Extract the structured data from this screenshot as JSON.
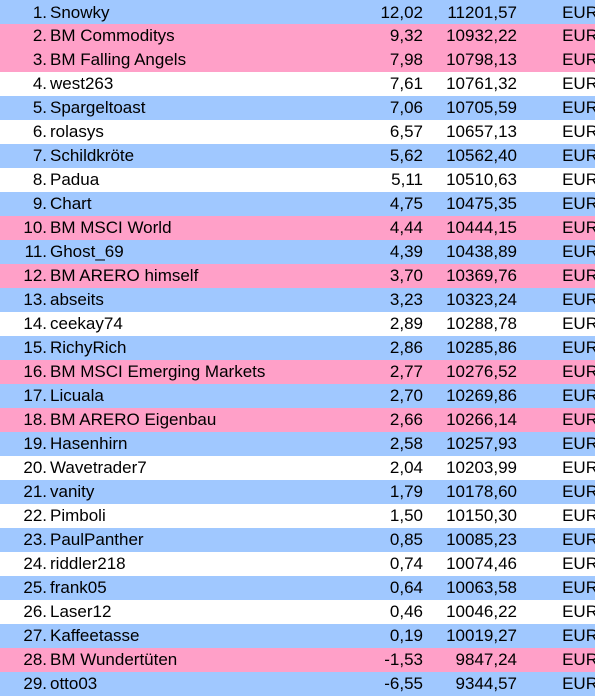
{
  "colors": {
    "white": "#ffffff",
    "blue": "#a0c8ff",
    "pink": "#ffa0c8"
  },
  "rows": [
    {
      "rank": "1.",
      "name": "Snowky",
      "pct": "12,02",
      "value": "11201,57",
      "currency": "EUR",
      "color": "blue"
    },
    {
      "rank": "2.",
      "name": "BM Commoditys",
      "pct": "9,32",
      "value": "10932,22",
      "currency": "EUR",
      "color": "pink"
    },
    {
      "rank": "3.",
      "name": "BM Falling Angels",
      "pct": "7,98",
      "value": "10798,13",
      "currency": "EUR",
      "color": "pink"
    },
    {
      "rank": "4.",
      "name": "west263",
      "pct": "7,61",
      "value": "10761,32",
      "currency": "EUR",
      "color": "white"
    },
    {
      "rank": "5.",
      "name": "Spargeltoast",
      "pct": "7,06",
      "value": "10705,59",
      "currency": "EUR",
      "color": "blue"
    },
    {
      "rank": "6.",
      "name": "rolasys",
      "pct": "6,57",
      "value": "10657,13",
      "currency": "EUR",
      "color": "white"
    },
    {
      "rank": "7.",
      "name": "Schildkröte",
      "pct": "5,62",
      "value": "10562,40",
      "currency": "EUR",
      "color": "blue"
    },
    {
      "rank": "8.",
      "name": "Padua",
      "pct": "5,11",
      "value": "10510,63",
      "currency": "EUR",
      "color": "white"
    },
    {
      "rank": "9.",
      "name": "Chart",
      "pct": "4,75",
      "value": "10475,35",
      "currency": "EUR",
      "color": "blue"
    },
    {
      "rank": "10.",
      "name": "BM MSCI World",
      "pct": "4,44",
      "value": "10444,15",
      "currency": "EUR",
      "color": "pink"
    },
    {
      "rank": "11.",
      "name": "Ghost_69",
      "pct": "4,39",
      "value": "10438,89",
      "currency": "EUR",
      "color": "blue"
    },
    {
      "rank": "12.",
      "name": "BM ARERO himself",
      "pct": "3,70",
      "value": "10369,76",
      "currency": "EUR",
      "color": "pink"
    },
    {
      "rank": "13.",
      "name": "abseits",
      "pct": "3,23",
      "value": "10323,24",
      "currency": "EUR",
      "color": "blue"
    },
    {
      "rank": "14.",
      "name": "ceekay74",
      "pct": "2,89",
      "value": "10288,78",
      "currency": "EUR",
      "color": "white"
    },
    {
      "rank": "15.",
      "name": "RichyRich",
      "pct": "2,86",
      "value": "10285,86",
      "currency": "EUR",
      "color": "blue"
    },
    {
      "rank": "16.",
      "name": "BM MSCI Emerging Markets",
      "pct": "2,77",
      "value": "10276,52",
      "currency": "EUR",
      "color": "pink"
    },
    {
      "rank": "17.",
      "name": "Licuala",
      "pct": "2,70",
      "value": "10269,86",
      "currency": "EUR",
      "color": "blue"
    },
    {
      "rank": "18.",
      "name": "BM ARERO Eigenbau",
      "pct": "2,66",
      "value": "10266,14",
      "currency": "EUR",
      "color": "pink"
    },
    {
      "rank": "19.",
      "name": "Hasenhirn",
      "pct": "2,58",
      "value": "10257,93",
      "currency": "EUR",
      "color": "blue"
    },
    {
      "rank": "20.",
      "name": "Wavetrader7",
      "pct": "2,04",
      "value": "10203,99",
      "currency": "EUR",
      "color": "white"
    },
    {
      "rank": "21.",
      "name": "vanity",
      "pct": "1,79",
      "value": "10178,60",
      "currency": "EUR",
      "color": "blue"
    },
    {
      "rank": "22.",
      "name": "Pimboli",
      "pct": "1,50",
      "value": "10150,30",
      "currency": "EUR",
      "color": "white"
    },
    {
      "rank": "23.",
      "name": "PaulPanther",
      "pct": "0,85",
      "value": "10085,23",
      "currency": "EUR",
      "color": "blue"
    },
    {
      "rank": "24.",
      "name": "riddler218",
      "pct": "0,74",
      "value": "10074,46",
      "currency": "EUR",
      "color": "white"
    },
    {
      "rank": "25.",
      "name": "frank05",
      "pct": "0,64",
      "value": "10063,58",
      "currency": "EUR",
      "color": "blue"
    },
    {
      "rank": "26.",
      "name": "Laser12",
      "pct": "0,46",
      "value": "10046,22",
      "currency": "EUR",
      "color": "white"
    },
    {
      "rank": "27.",
      "name": "Kaffeetasse",
      "pct": "0,19",
      "value": "10019,27",
      "currency": "EUR",
      "color": "blue"
    },
    {
      "rank": "28.",
      "name": "BM Wundertüten",
      "pct": "-1,53",
      "value": "9847,24",
      "currency": "EUR",
      "color": "pink"
    },
    {
      "rank": "29.",
      "name": "otto03",
      "pct": "-6,55",
      "value": "9344,57",
      "currency": "EUR",
      "color": "blue"
    }
  ]
}
